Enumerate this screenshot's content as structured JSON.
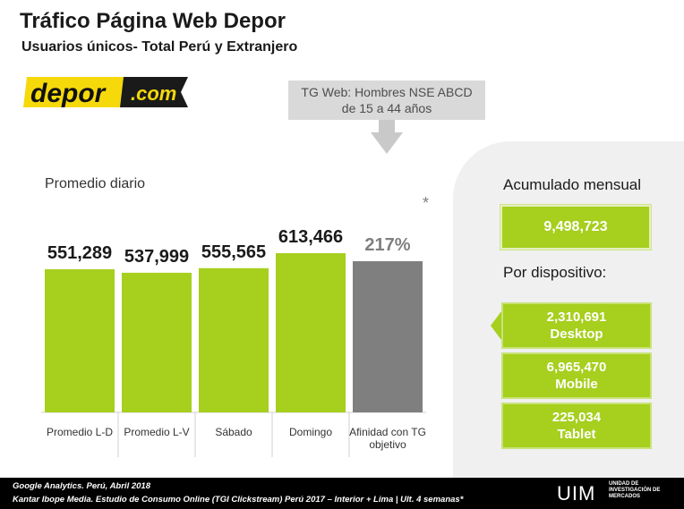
{
  "header": {
    "title": "Tráfico Página Web Depor",
    "subtitle": "Usuarios únicos- Total Perú y Extranjero"
  },
  "logo": {
    "brand": "depor",
    "suffix": ".com",
    "accent": "#f5d90a"
  },
  "target_box": {
    "line1": "TG Web: Hombres NSE ABCD",
    "line2": "de 15 a 44 años"
  },
  "chart_label": "Promedio diario",
  "chart_data": {
    "type": "bar",
    "categories": [
      "Promedio L-D",
      "Promedio L-V",
      "Sábado",
      "Domingo",
      "Afinidad con TG objetivo"
    ],
    "values": [
      551289,
      537999,
      555565,
      613466,
      217
    ],
    "value_labels": [
      "551,289",
      "537,999",
      "555,565",
      "613,466",
      "217%"
    ],
    "colors": [
      "#a6cf1e",
      "#a6cf1e",
      "#a6cf1e",
      "#a6cf1e",
      "#7f7f7f"
    ],
    "title": "",
    "xlabel": "",
    "ylabel": "",
    "grid": false,
    "legend": "none"
  },
  "affinity_note": "*",
  "summary": {
    "accumulated_title": "Acumulado mensual",
    "accumulated_value": "9,498,723",
    "device_title": "Por dispositivo:",
    "devices": [
      {
        "value": "2,310,691",
        "label": "Desktop"
      },
      {
        "value": "6,965,470",
        "label": "Mobile"
      },
      {
        "value": "225,034",
        "label": "Tablet"
      }
    ]
  },
  "footer": {
    "source1": "Google Analytics. Perú, Abril 2018",
    "source2": "Kantar Ibope Media. Estudio de Consumo Online (TGI Clickstream) Perú 2017 – Interior + Lima | Ult. 4 semanas*",
    "org": "UIM",
    "org_sub": "UNIDAD DE INVESTIGACIÓN DE MERCADOS"
  }
}
